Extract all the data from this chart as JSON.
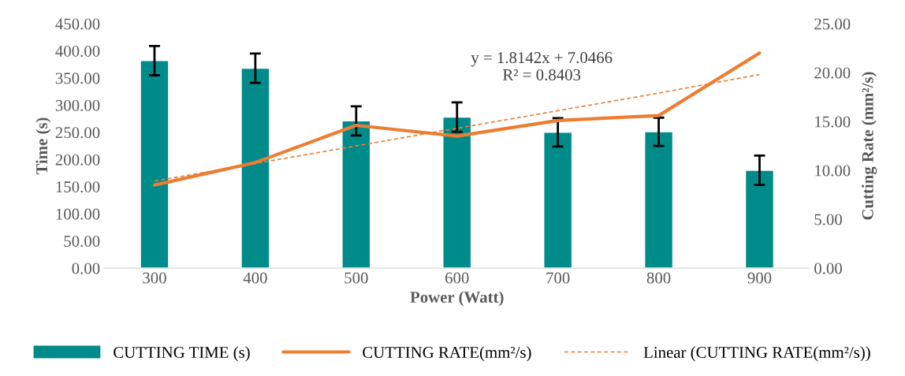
{
  "chart_data": {
    "type": "bar",
    "xlabel": "Power (Watt)",
    "ylabel": "Time (s)",
    "y2label": "Cutting Rate (mm²/s)",
    "categories": [
      "300",
      "400",
      "500",
      "600",
      "700",
      "800",
      "900"
    ],
    "series": [
      {
        "name": "CUTTING TIME (s)",
        "color": "#008b8b",
        "values": [
          382,
          368,
          271,
          278,
          250,
          251,
          180
        ],
        "errors": [
          27,
          27,
          27,
          27,
          26,
          26,
          27
        ]
      },
      {
        "name": "CUTTING RATE(mm²/s)",
        "type": "line",
        "axis": "y2",
        "color": "#ed7d31",
        "line_style": "solid",
        "values": [
          8.5,
          10.8,
          14.6,
          13.5,
          15.1,
          15.6,
          22.0
        ]
      },
      {
        "name": "Linear (CUTTING RATE(mm²/s))",
        "type": "line",
        "axis": "y2",
        "color": "#ed7d31",
        "line_style": "dashed",
        "values": [
          8.9,
          10.7,
          12.5,
          14.3,
          16.1,
          17.9,
          19.8
        ]
      }
    ],
    "ylim": [
      0,
      450
    ],
    "yticks": [
      {
        "value": 0,
        "label": "0.00"
      },
      {
        "value": 50,
        "label": "50.00"
      },
      {
        "value": 100,
        "label": "100.00"
      },
      {
        "value": 150,
        "label": "150.00"
      },
      {
        "value": 200,
        "label": "200.00"
      },
      {
        "value": 250,
        "label": "250.00"
      },
      {
        "value": 300,
        "label": "300.00"
      },
      {
        "value": 350,
        "label": "350.00"
      },
      {
        "value": 400,
        "label": "400.00"
      },
      {
        "value": 450,
        "label": "450.00"
      }
    ],
    "y2lim": [
      0,
      25
    ],
    "y2ticks": [
      {
        "value": 0,
        "label": "0.00"
      },
      {
        "value": 5,
        "label": "5.00"
      },
      {
        "value": 10,
        "label": "10.00"
      },
      {
        "value": 15,
        "label": "15.00"
      },
      {
        "value": 20,
        "label": "20.00"
      },
      {
        "value": 25,
        "label": "25.00"
      }
    ],
    "annotations": [
      "y = 1.8142x + 7.0466\nR² = 0.8403"
    ],
    "legend": "bottom",
    "grid": false
  }
}
